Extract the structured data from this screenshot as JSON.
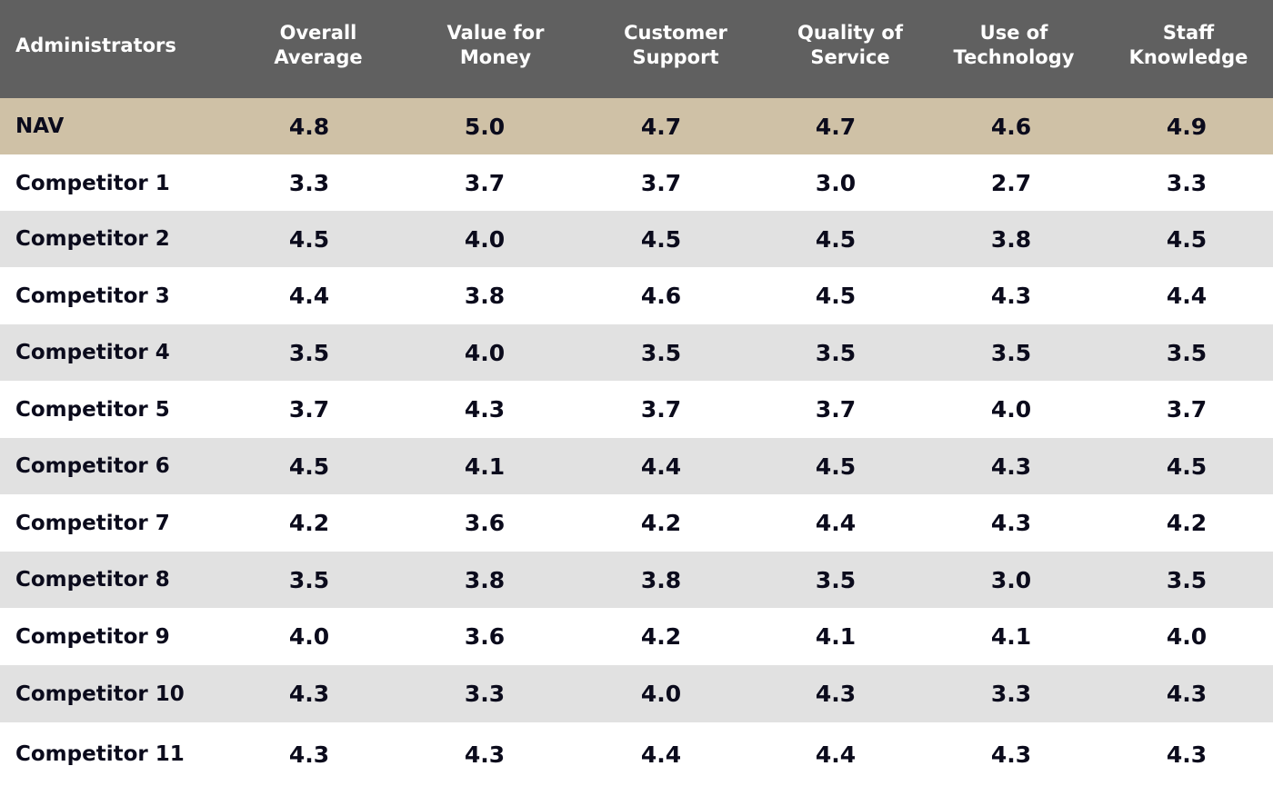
{
  "chart_data": {
    "type": "table",
    "title": "",
    "columns": [
      "Administrators",
      "Overall\nAverage",
      "Value for\nMoney",
      "Customer\nSupport",
      "Quality of\nService",
      "Use of\nTechnology",
      "Staff\nKnowledge"
    ],
    "rows": [
      {
        "name": "NAV",
        "values": [
          "4.8",
          "5.0",
          "4.7",
          "4.7",
          "4.6",
          "4.9"
        ]
      },
      {
        "name": "Competitor 1",
        "values": [
          "3.3",
          "3.7",
          "3.7",
          "3.0",
          "2.7",
          "3.3"
        ]
      },
      {
        "name": "Competitor 2",
        "values": [
          "4.5",
          "4.0",
          "4.5",
          "4.5",
          "3.8",
          "4.5"
        ]
      },
      {
        "name": "Competitor 3",
        "values": [
          "4.4",
          "3.8",
          "4.6",
          "4.5",
          "4.3",
          "4.4"
        ]
      },
      {
        "name": "Competitor 4",
        "values": [
          "3.5",
          "4.0",
          "3.5",
          "3.5",
          "3.5",
          "3.5"
        ]
      },
      {
        "name": "Competitor 5",
        "values": [
          "3.7",
          "4.3",
          "3.7",
          "3.7",
          "4.0",
          "3.7"
        ]
      },
      {
        "name": "Competitor 6",
        "values": [
          "4.5",
          "4.1",
          "4.4",
          "4.5",
          "4.3",
          "4.5"
        ]
      },
      {
        "name": "Competitor 7",
        "values": [
          "4.2",
          "3.6",
          "4.2",
          "4.4",
          "4.3",
          "4.2"
        ]
      },
      {
        "name": "Competitor 8",
        "values": [
          "3.5",
          "3.8",
          "3.8",
          "3.5",
          "3.0",
          "3.5"
        ]
      },
      {
        "name": "Competitor 9",
        "values": [
          "4.0",
          "3.6",
          "4.2",
          "4.1",
          "4.1",
          "4.0"
        ]
      },
      {
        "name": "Competitor 10",
        "values": [
          "4.3",
          "3.3",
          "4.0",
          "4.3",
          "3.3",
          "4.3"
        ]
      },
      {
        "name": "Competitor 11",
        "values": [
          "4.3",
          "4.3",
          "4.4",
          "4.4",
          "4.3",
          "4.3"
        ]
      }
    ]
  },
  "colors": {
    "header_bg": "#606060",
    "header_text": "#ffffff",
    "highlight_row_bg": "#cfc1a6",
    "stripe_row_bg": "#e1e1e1",
    "plain_row_bg": "#ffffff",
    "cell_text": "#0b0b1c"
  }
}
